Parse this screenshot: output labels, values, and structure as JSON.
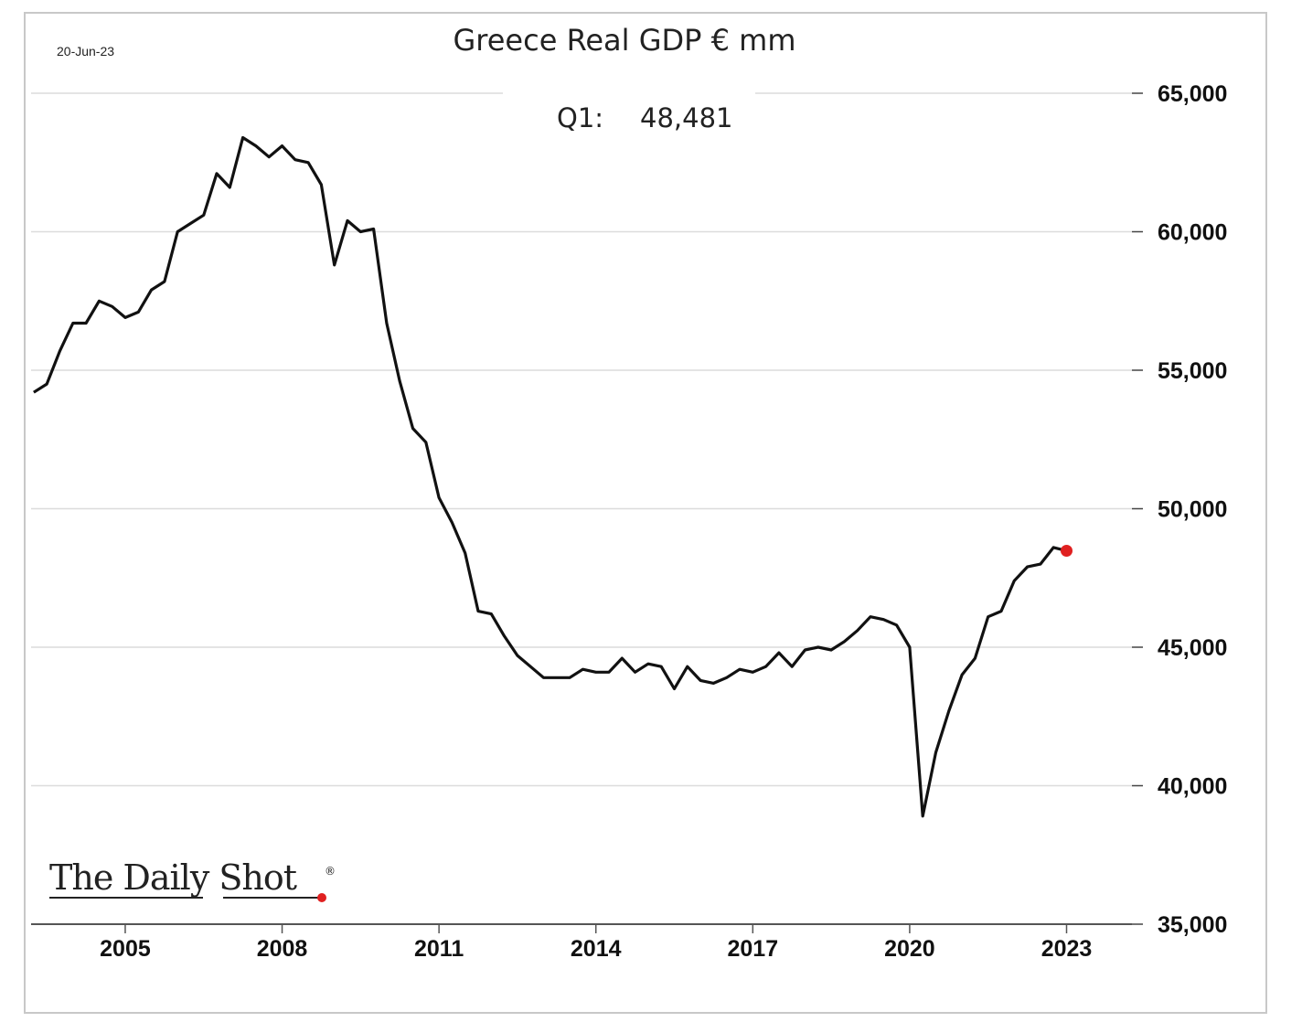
{
  "chart_data": {
    "type": "line",
    "title": "Greece Real GDP € mm",
    "date_label": "20-Jun-23",
    "annotation": {
      "label": "Q1:",
      "value": "48,481"
    },
    "source_logo": "The Daily Shot",
    "xlabel": "",
    "ylabel": "",
    "y_axis_position": "right",
    "ylim": [
      35000,
      65000
    ],
    "y_ticks": [
      35000,
      40000,
      45000,
      50000,
      55000,
      60000,
      65000
    ],
    "y_tick_labels": [
      "35,000",
      "40,000",
      "45,000",
      "50,000",
      "55,000",
      "60,000",
      "65,000"
    ],
    "x_ticks": [
      2005,
      2008,
      2011,
      2014,
      2017,
      2020,
      2023
    ],
    "x_tick_labels": [
      "2005",
      "2008",
      "2011",
      "2014",
      "2017",
      "2020",
      "2023"
    ],
    "xlim": [
      2003.2,
      2024.25
    ],
    "grid": true,
    "series": [
      {
        "color": "#111111",
        "last_point_color": "#e02020",
        "points": [
          [
            2003.25,
            54200
          ],
          [
            2003.5,
            54500
          ],
          [
            2003.75,
            55700
          ],
          [
            2004.0,
            56700
          ],
          [
            2004.25,
            56700
          ],
          [
            2004.5,
            57500
          ],
          [
            2004.75,
            57300
          ],
          [
            2005.0,
            56900
          ],
          [
            2005.25,
            57100
          ],
          [
            2005.5,
            57900
          ],
          [
            2005.75,
            58200
          ],
          [
            2006.0,
            60000
          ],
          [
            2006.25,
            60300
          ],
          [
            2006.5,
            60600
          ],
          [
            2006.75,
            62100
          ],
          [
            2007.0,
            61600
          ],
          [
            2007.25,
            63400
          ],
          [
            2007.5,
            63100
          ],
          [
            2007.75,
            62700
          ],
          [
            2008.0,
            63100
          ],
          [
            2008.25,
            62600
          ],
          [
            2008.5,
            62500
          ],
          [
            2008.75,
            61700
          ],
          [
            2009.0,
            58800
          ],
          [
            2009.25,
            60400
          ],
          [
            2009.5,
            60000
          ],
          [
            2009.75,
            60100
          ],
          [
            2010.0,
            56700
          ],
          [
            2010.25,
            54600
          ],
          [
            2010.5,
            52900
          ],
          [
            2010.75,
            52400
          ],
          [
            2011.0,
            50400
          ],
          [
            2011.25,
            49500
          ],
          [
            2011.5,
            48400
          ],
          [
            2011.75,
            46300
          ],
          [
            2012.0,
            46200
          ],
          [
            2012.25,
            45400
          ],
          [
            2012.5,
            44700
          ],
          [
            2012.75,
            44300
          ],
          [
            2013.0,
            43900
          ],
          [
            2013.25,
            43900
          ],
          [
            2013.5,
            43900
          ],
          [
            2013.75,
            44200
          ],
          [
            2014.0,
            44100
          ],
          [
            2014.25,
            44100
          ],
          [
            2014.5,
            44600
          ],
          [
            2014.75,
            44100
          ],
          [
            2015.0,
            44400
          ],
          [
            2015.25,
            44300
          ],
          [
            2015.5,
            43500
          ],
          [
            2015.75,
            44300
          ],
          [
            2016.0,
            43800
          ],
          [
            2016.25,
            43700
          ],
          [
            2016.5,
            43900
          ],
          [
            2016.75,
            44200
          ],
          [
            2017.0,
            44100
          ],
          [
            2017.25,
            44300
          ],
          [
            2017.5,
            44800
          ],
          [
            2017.75,
            44300
          ],
          [
            2018.0,
            44900
          ],
          [
            2018.25,
            45000
          ],
          [
            2018.5,
            44900
          ],
          [
            2018.75,
            45200
          ],
          [
            2019.0,
            45600
          ],
          [
            2019.25,
            46100
          ],
          [
            2019.5,
            46000
          ],
          [
            2019.75,
            45800
          ],
          [
            2020.0,
            45000
          ],
          [
            2020.25,
            38900
          ],
          [
            2020.5,
            41200
          ],
          [
            2020.75,
            42700
          ],
          [
            2021.0,
            44000
          ],
          [
            2021.25,
            44600
          ],
          [
            2021.5,
            46100
          ],
          [
            2021.75,
            46300
          ],
          [
            2022.0,
            47400
          ],
          [
            2022.25,
            47900
          ],
          [
            2022.5,
            48000
          ],
          [
            2022.75,
            48600
          ],
          [
            2023.0,
            48481
          ]
        ]
      }
    ]
  }
}
